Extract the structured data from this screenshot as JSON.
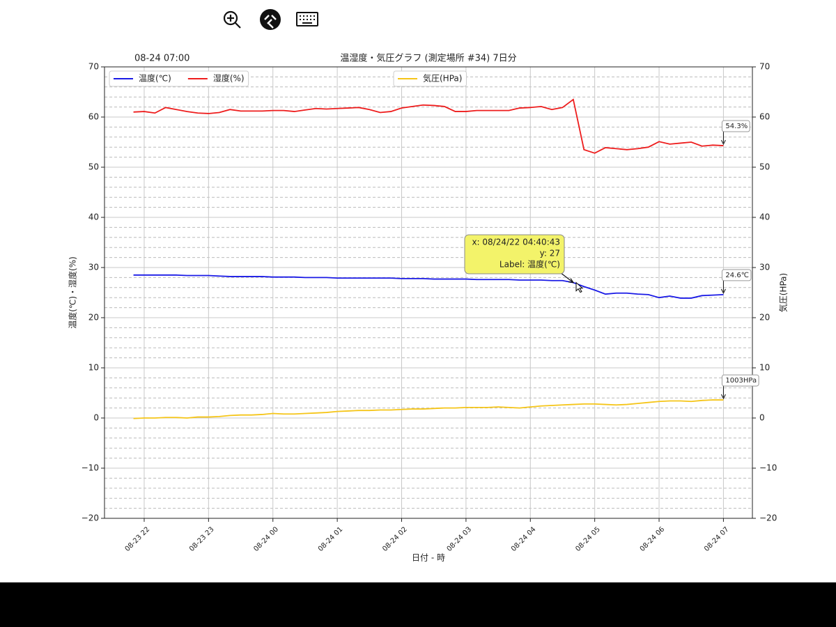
{
  "chart_data": {
    "type": "line",
    "title": "温湿度・気圧グラフ (測定場所 #34) 7日分",
    "corner_text": "08-24 07:00",
    "xlabel": "日付 - 時",
    "ylabel": "温度(℃)・湿度(%)",
    "y2label": "気圧(HPa)",
    "x": [
      "08-23 21:50",
      "08-23 22:00",
      "08-23 22:10",
      "08-23 22:20",
      "08-23 22:30",
      "08-23 22:40",
      "08-23 22:50",
      "08-23 23:00",
      "08-23 23:10",
      "08-23 23:20",
      "08-23 23:30",
      "08-23 23:40",
      "08-23 23:50",
      "08-24 00:00",
      "08-24 00:10",
      "08-24 00:20",
      "08-24 00:30",
      "08-24 00:40",
      "08-24 00:50",
      "08-24 01:00",
      "08-24 01:10",
      "08-24 01:20",
      "08-24 01:30",
      "08-24 01:40",
      "08-24 01:50",
      "08-24 02:00",
      "08-24 02:10",
      "08-24 02:20",
      "08-24 02:30",
      "08-24 02:40",
      "08-24 02:50",
      "08-24 03:00",
      "08-24 03:10",
      "08-24 03:20",
      "08-24 03:30",
      "08-24 03:40",
      "08-24 03:50",
      "08-24 04:00",
      "08-24 04:10",
      "08-24 04:20",
      "08-24 04:30",
      "08-24 04:40",
      "08-24 04:50",
      "08-24 05:00",
      "08-24 05:10",
      "08-24 05:20",
      "08-24 05:30",
      "08-24 05:40",
      "08-24 05:50",
      "08-24 06:00",
      "08-24 06:10",
      "08-24 06:20",
      "08-24 06:30",
      "08-24 06:40",
      "08-24 06:50",
      "08-24 07:00"
    ],
    "xlim": [
      "08-23 21:23",
      "08-24 07:27"
    ],
    "xticks": [
      {
        "value": "08-23 22:00",
        "label": "08-23 22"
      },
      {
        "value": "08-23 23:00",
        "label": "08-23 23"
      },
      {
        "value": "08-24 00:00",
        "label": "08-24 00"
      },
      {
        "value": "08-24 01:00",
        "label": "08-24 01"
      },
      {
        "value": "08-24 02:00",
        "label": "08-24 02"
      },
      {
        "value": "08-24 03:00",
        "label": "08-24 03"
      },
      {
        "value": "08-24 04:00",
        "label": "08-24 04"
      },
      {
        "value": "08-24 05:00",
        "label": "08-24 05"
      },
      {
        "value": "08-24 06:00",
        "label": "08-24 06"
      },
      {
        "value": "08-24 07:00",
        "label": "08-24 07"
      }
    ],
    "ylim": [
      -20,
      70
    ],
    "yticks": [
      {
        "value": -20,
        "label": "−20"
      },
      {
        "value": -10,
        "label": "−10"
      },
      0,
      10,
      20,
      30,
      40,
      50,
      60,
      70
    ],
    "y2lim": [
      -20,
      70
    ],
    "y2ticks": [
      {
        "value": -20,
        "label": "−20"
      },
      {
        "value": -10,
        "label": "−10"
      },
      0,
      10,
      20,
      30,
      40,
      50,
      60,
      70
    ],
    "grid": true,
    "minor_grid": true,
    "legend": {
      "y": "upper left",
      "y2": "upper center"
    },
    "series": [
      {
        "name": "温度(℃)",
        "color": "#1a1ae6",
        "annotation": "24.6℃",
        "values": [
          28.5,
          28.5,
          28.5,
          28.5,
          28.5,
          28.4,
          28.4,
          28.4,
          28.3,
          28.2,
          28.2,
          28.2,
          28.2,
          28.1,
          28.1,
          28.1,
          28.0,
          28.0,
          28.0,
          27.9,
          27.9,
          27.9,
          27.9,
          27.9,
          27.9,
          27.8,
          27.8,
          27.8,
          27.7,
          27.7,
          27.7,
          27.7,
          27.6,
          27.6,
          27.6,
          27.6,
          27.5,
          27.5,
          27.5,
          27.4,
          27.4,
          27,
          26.2,
          25.5,
          24.7,
          24.9,
          24.9,
          24.7,
          24.6,
          24.0,
          24.3,
          23.9,
          23.9,
          24.4,
          24.5,
          24.6
        ]
      },
      {
        "name": "湿度(%)",
        "color": "#ee1c1c",
        "annotation": "54.3%",
        "values": [
          61.0,
          61.1,
          60.8,
          61.9,
          61.5,
          61.1,
          60.8,
          60.7,
          60.9,
          61.5,
          61.2,
          61.2,
          61.2,
          61.3,
          61.3,
          61.1,
          61.4,
          61.7,
          61.6,
          61.7,
          61.8,
          61.9,
          61.5,
          60.9,
          61.1,
          61.8,
          62.1,
          62.4,
          62.3,
          62.1,
          61.1,
          61.1,
          61.3,
          61.3,
          61.3,
          61.3,
          61.8,
          61.9,
          62.1,
          61.5,
          61.9,
          63.5,
          53.5,
          52.8,
          53.9,
          53.7,
          53.5,
          53.7,
          54.0,
          55.1,
          54.6,
          54.8,
          55.0,
          54.2,
          54.4,
          54.3
        ]
      },
      {
        "name": "気圧(HPa)",
        "color": "#f5c518",
        "axis": "y2",
        "annotation": "1003HPa",
        "values": [
          -0.1,
          0.0,
          0.0,
          0.1,
          0.1,
          0.0,
          0.2,
          0.2,
          0.3,
          0.5,
          0.6,
          0.6,
          0.7,
          0.9,
          0.8,
          0.8,
          0.9,
          1.0,
          1.1,
          1.3,
          1.4,
          1.5,
          1.5,
          1.6,
          1.6,
          1.7,
          1.8,
          1.8,
          1.9,
          2.0,
          2.0,
          2.1,
          2.1,
          2.1,
          2.2,
          2.1,
          2.0,
          2.2,
          2.4,
          2.5,
          2.6,
          2.7,
          2.8,
          2.8,
          2.7,
          2.6,
          2.7,
          2.9,
          3.1,
          3.3,
          3.4,
          3.4,
          3.3,
          3.5,
          3.6,
          3.6
        ]
      }
    ],
    "tooltip": [
      "x: 08/24/22 04:40:43",
      "y: 27",
      "Label: 温度(℃)"
    ]
  }
}
